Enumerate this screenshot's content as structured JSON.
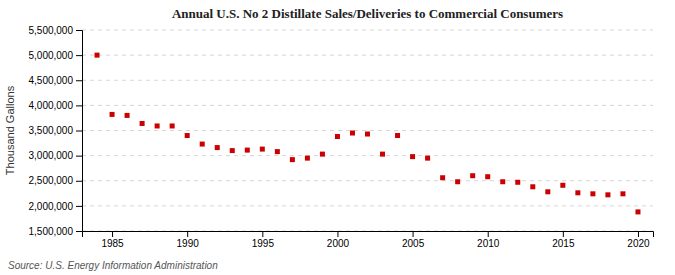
{
  "chart_data": {
    "type": "scatter",
    "title": "Annual U.S. No 2 Distillate Sales/Deliveries to Commercial Consumers",
    "ylabel": "Thousand Gallons",
    "annotations": [
      "Source: U.S. Energy Information Administration"
    ],
    "color": "#cc0000",
    "marker": "square",
    "grid": true,
    "xlim": [
      1983,
      2021
    ],
    "xticks": [
      1985,
      1990,
      1995,
      2000,
      2005,
      2010,
      2015,
      2020
    ],
    "ylim": [
      1500000,
      5500000
    ],
    "yticks": [
      {
        "value": 1500000,
        "label": "1,500,000"
      },
      {
        "value": 2000000,
        "label": "2,000,000"
      },
      {
        "value": 2500000,
        "label": "2,500,000"
      },
      {
        "value": 3000000,
        "label": "3,000,000"
      },
      {
        "value": 3500000,
        "label": "3,500,000"
      },
      {
        "value": 4000000,
        "label": "4,000,000"
      },
      {
        "value": 4500000,
        "label": "4,500,000"
      },
      {
        "value": 5000000,
        "label": "5,000,000"
      },
      {
        "value": 5500000,
        "label": "5,500,000"
      }
    ],
    "x": [
      1984,
      1985,
      1986,
      1987,
      1988,
      1989,
      1990,
      1991,
      1992,
      1993,
      1994,
      1995,
      1996,
      1997,
      1998,
      1999,
      2000,
      2001,
      2002,
      2003,
      2004,
      2005,
      2006,
      2007,
      2008,
      2009,
      2010,
      2011,
      2012,
      2013,
      2014,
      2015,
      2016,
      2017,
      2018,
      2019,
      2020
    ],
    "values": [
      5000000,
      3820000,
      3800000,
      3640000,
      3590000,
      3590000,
      3400000,
      3230000,
      3160000,
      3100000,
      3110000,
      3130000,
      3080000,
      2920000,
      2950000,
      3030000,
      3380000,
      3450000,
      3430000,
      3030000,
      3400000,
      2980000,
      2950000,
      2560000,
      2480000,
      2600000,
      2580000,
      2480000,
      2470000,
      2380000,
      2280000,
      2410000,
      2260000,
      2240000,
      2220000,
      2240000,
      1880000
    ]
  }
}
